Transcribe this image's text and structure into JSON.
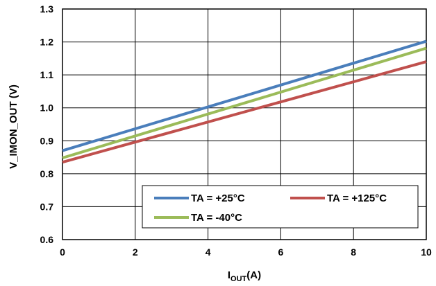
{
  "chart_data": {
    "type": "line",
    "xlabel_main": "I",
    "xlabel_sub": "OUT",
    "xlabel_unit": "(A)",
    "ylabel": "V_IMON_OUT (V)",
    "xlim": [
      0,
      10
    ],
    "ylim": [
      0.6,
      1.3
    ],
    "x_ticks": [
      "0",
      "2",
      "4",
      "6",
      "8",
      "10"
    ],
    "y_ticks": [
      "0.6",
      "0.7",
      "0.8",
      "0.9",
      "1.0",
      "1.1",
      "1.2",
      "1.3"
    ],
    "grid": true,
    "legend_position": "bottom-right",
    "series": [
      {
        "name": "TA = +25°C",
        "color": "#4a7ebb",
        "x": [
          0,
          10
        ],
        "y": [
          0.87,
          1.202
        ]
      },
      {
        "name": "TA = +125°C",
        "color": "#c0504d",
        "x": [
          0,
          10
        ],
        "y": [
          0.835,
          1.14
        ]
      },
      {
        "name": "TA = -40°C",
        "color": "#9bbb59",
        "x": [
          0,
          10
        ],
        "y": [
          0.848,
          1.181
        ]
      }
    ]
  }
}
